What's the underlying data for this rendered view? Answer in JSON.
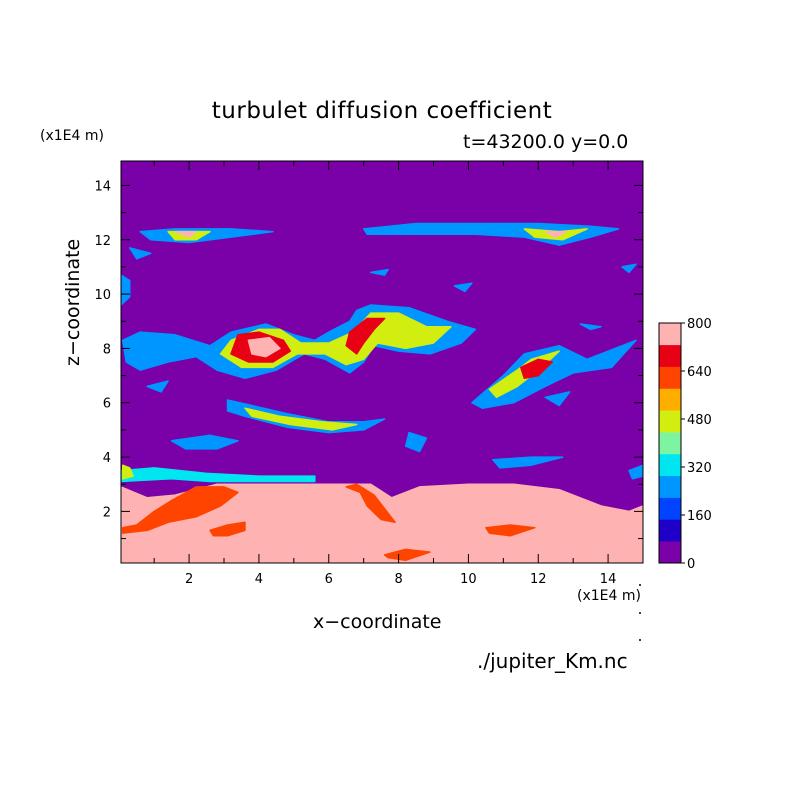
{
  "chart_data": {
    "type": "heatmap",
    "title": "turbulet diffusion coefficient",
    "subtitle": "t=43200.0 y=0.0",
    "xlabel": "x−coordinate",
    "ylabel": "z−coordinate",
    "x_unit": "(x1E4 m)",
    "y_unit": "(x1E4 m)",
    "xlim": [
      0.05,
      15.0
    ],
    "ylim": [
      0.1,
      14.9
    ],
    "x_ticks": [
      "2",
      "4",
      "6",
      "8",
      "10",
      "12",
      "14"
    ],
    "y_ticks": [
      "2",
      "4",
      "6",
      "8",
      "10",
      "12",
      "14"
    ],
    "colorbar": {
      "min": 0,
      "max": 800,
      "tick_labels": [
        "0",
        "160",
        "320",
        "480",
        "640",
        "800"
      ],
      "levels": [
        0,
        80,
        160,
        240,
        320,
        400,
        480,
        560,
        640,
        720,
        800
      ],
      "colors": [
        "#7a00a8",
        "#1f00c8",
        "#0044ff",
        "#0096ff",
        "#00e6f0",
        "#7df5a0",
        "#d2ee10",
        "#ffae00",
        "#ff4400",
        "#e80014",
        "#ffb2b2"
      ]
    },
    "features": [
      {
        "level": 10,
        "points": [
          [
            0.05,
            0.1
          ],
          [
            15.0,
            0.1
          ],
          [
            15.0,
            2.2
          ],
          [
            14.6,
            2.0
          ],
          [
            13.8,
            2.2
          ],
          [
            12.6,
            2.8
          ],
          [
            11.3,
            3.0
          ],
          [
            10.0,
            3.0
          ],
          [
            8.6,
            2.9
          ],
          [
            7.8,
            2.5
          ],
          [
            7.2,
            3.0
          ],
          [
            5.6,
            3.0
          ],
          [
            4.0,
            3.0
          ],
          [
            2.8,
            3.0
          ],
          [
            1.6,
            2.6
          ],
          [
            0.8,
            2.5
          ],
          [
            0.05,
            2.9
          ]
        ]
      },
      {
        "level": 8,
        "points": [
          [
            0.1,
            1.4
          ],
          [
            0.5,
            1.5
          ],
          [
            1.0,
            2.0
          ],
          [
            1.5,
            2.4
          ],
          [
            2.2,
            2.9
          ],
          [
            3.0,
            2.9
          ],
          [
            3.4,
            2.7
          ],
          [
            2.9,
            2.2
          ],
          [
            2.2,
            1.8
          ],
          [
            1.4,
            1.6
          ],
          [
            0.8,
            1.3
          ],
          [
            0.1,
            1.2
          ]
        ]
      },
      {
        "level": 8,
        "points": [
          [
            6.5,
            2.9
          ],
          [
            6.9,
            2.7
          ],
          [
            7.1,
            2.2
          ],
          [
            7.5,
            1.7
          ],
          [
            7.9,
            1.6
          ],
          [
            7.6,
            2.1
          ],
          [
            7.3,
            2.6
          ],
          [
            6.8,
            3.0
          ]
        ]
      },
      {
        "level": 8,
        "points": [
          [
            2.6,
            1.3
          ],
          [
            3.1,
            1.5
          ],
          [
            3.6,
            1.6
          ],
          [
            3.6,
            1.3
          ],
          [
            3.1,
            1.1
          ],
          [
            2.7,
            1.1
          ]
        ]
      },
      {
        "level": 8,
        "points": [
          [
            10.5,
            1.4
          ],
          [
            11.2,
            1.5
          ],
          [
            11.9,
            1.4
          ],
          [
            11.2,
            1.1
          ],
          [
            10.6,
            1.2
          ]
        ]
      },
      {
        "level": 8,
        "points": [
          [
            7.6,
            0.4
          ],
          [
            8.2,
            0.6
          ],
          [
            8.9,
            0.5
          ],
          [
            8.2,
            0.2
          ],
          [
            7.7,
            0.3
          ]
        ]
      },
      {
        "level": 4,
        "points": [
          [
            0.05,
            3.5
          ],
          [
            1.0,
            3.6
          ],
          [
            2.5,
            3.4
          ],
          [
            4.0,
            3.3
          ],
          [
            5.6,
            3.3
          ],
          [
            5.6,
            3.1
          ],
          [
            4.0,
            3.1
          ],
          [
            2.6,
            3.1
          ],
          [
            1.5,
            3.2
          ],
          [
            0.05,
            3.1
          ]
        ]
      },
      {
        "level": 3,
        "points": [
          [
            0.1,
            8.3
          ],
          [
            0.6,
            8.6
          ],
          [
            1.6,
            8.5
          ],
          [
            2.6,
            8.1
          ],
          [
            3.2,
            8.6
          ],
          [
            4.2,
            8.9
          ],
          [
            5.0,
            8.5
          ],
          [
            5.6,
            8.3
          ],
          [
            6.0,
            8.6
          ],
          [
            6.6,
            9.0
          ],
          [
            6.8,
            9.4
          ],
          [
            7.2,
            9.6
          ],
          [
            8.3,
            9.5
          ],
          [
            9.4,
            9.0
          ],
          [
            10.2,
            8.7
          ],
          [
            9.8,
            8.2
          ],
          [
            8.9,
            7.8
          ],
          [
            8.0,
            7.9
          ],
          [
            7.3,
            8.1
          ],
          [
            7.0,
            7.5
          ],
          [
            6.6,
            7.1
          ],
          [
            5.9,
            7.6
          ],
          [
            5.3,
            7.8
          ],
          [
            4.5,
            7.2
          ],
          [
            3.6,
            6.9
          ],
          [
            2.8,
            7.2
          ],
          [
            2.2,
            7.7
          ],
          [
            1.4,
            7.5
          ],
          [
            0.6,
            7.2
          ],
          [
            0.2,
            7.5
          ]
        ]
      },
      {
        "level": 3,
        "points": [
          [
            10.1,
            6.0
          ],
          [
            11.0,
            7.0
          ],
          [
            11.6,
            7.8
          ],
          [
            12.6,
            8.1
          ],
          [
            13.4,
            7.6
          ],
          [
            14.2,
            8.0
          ],
          [
            14.8,
            8.3
          ],
          [
            14.1,
            7.3
          ],
          [
            13.0,
            7.1
          ],
          [
            12.2,
            6.6
          ],
          [
            11.3,
            6.0
          ],
          [
            10.4,
            5.8
          ]
        ]
      },
      {
        "level": 3,
        "points": [
          [
            3.1,
            6.1
          ],
          [
            3.8,
            5.9
          ],
          [
            4.8,
            5.6
          ],
          [
            6.0,
            5.3
          ],
          [
            7.0,
            5.3
          ],
          [
            7.6,
            5.4
          ],
          [
            7.0,
            5.0
          ],
          [
            6.0,
            4.9
          ],
          [
            4.8,
            5.1
          ],
          [
            3.6,
            5.5
          ],
          [
            3.1,
            5.7
          ]
        ]
      },
      {
        "level": 3,
        "points": [
          [
            0.6,
            12.3
          ],
          [
            1.6,
            12.4
          ],
          [
            3.2,
            12.4
          ],
          [
            4.4,
            12.3
          ],
          [
            3.2,
            12.1
          ],
          [
            2.0,
            11.9
          ],
          [
            0.9,
            12.0
          ]
        ]
      },
      {
        "level": 3,
        "points": [
          [
            7.0,
            12.4
          ],
          [
            8.5,
            12.6
          ],
          [
            10.2,
            12.6
          ],
          [
            12.0,
            12.6
          ],
          [
            13.5,
            12.5
          ],
          [
            14.3,
            12.4
          ],
          [
            13.5,
            12.1
          ],
          [
            12.6,
            11.8
          ],
          [
            11.6,
            12.1
          ],
          [
            10.2,
            12.2
          ],
          [
            8.5,
            12.2
          ],
          [
            7.1,
            12.2
          ]
        ]
      },
      {
        "level": 3,
        "points": [
          [
            1.5,
            4.6
          ],
          [
            2.6,
            4.8
          ],
          [
            3.4,
            4.6
          ],
          [
            2.8,
            4.3
          ],
          [
            1.9,
            4.3
          ]
        ]
      },
      {
        "level": 3,
        "points": [
          [
            8.3,
            4.9
          ],
          [
            8.8,
            4.7
          ],
          [
            8.6,
            4.2
          ],
          [
            8.2,
            4.4
          ]
        ]
      },
      {
        "level": 3,
        "points": [
          [
            10.7,
            3.9
          ],
          [
            11.8,
            4.0
          ],
          [
            12.7,
            4.0
          ],
          [
            11.8,
            3.7
          ],
          [
            10.9,
            3.6
          ]
        ]
      },
      {
        "level": 6,
        "points": [
          [
            0.1,
            3.7
          ],
          [
            0.3,
            3.6
          ],
          [
            0.4,
            3.3
          ],
          [
            0.1,
            3.2
          ]
        ]
      },
      {
        "level": 3,
        "points": [
          [
            14.6,
            3.5
          ],
          [
            15.0,
            3.7
          ],
          [
            15.0,
            3.3
          ],
          [
            14.7,
            3.2
          ]
        ]
      },
      {
        "level": 3,
        "points": [
          [
            0.05,
            10.7
          ],
          [
            0.3,
            10.5
          ],
          [
            0.3,
            9.9
          ],
          [
            0.05,
            9.6
          ]
        ]
      },
      {
        "level": 3,
        "points": [
          [
            0.3,
            11.7
          ],
          [
            0.9,
            11.5
          ],
          [
            0.5,
            11.3
          ]
        ]
      },
      {
        "level": 3,
        "points": [
          [
            7.2,
            10.8
          ],
          [
            7.7,
            10.9
          ],
          [
            7.6,
            10.7
          ]
        ]
      },
      {
        "level": 3,
        "points": [
          [
            9.6,
            10.3
          ],
          [
            10.1,
            10.4
          ],
          [
            9.9,
            10.1
          ]
        ]
      },
      {
        "level": 3,
        "points": [
          [
            14.4,
            11.0
          ],
          [
            14.8,
            11.1
          ],
          [
            14.6,
            10.8
          ]
        ]
      },
      {
        "level": 3,
        "points": [
          [
            0.8,
            6.6
          ],
          [
            1.4,
            6.8
          ],
          [
            1.2,
            6.4
          ]
        ]
      },
      {
        "level": 3,
        "points": [
          [
            12.2,
            6.2
          ],
          [
            12.9,
            6.4
          ],
          [
            12.6,
            5.9
          ]
        ]
      },
      {
        "level": 3,
        "points": [
          [
            13.2,
            8.9
          ],
          [
            13.8,
            8.8
          ],
          [
            13.5,
            8.7
          ]
        ]
      },
      {
        "level": 6,
        "points": [
          [
            4.0,
            8.7
          ],
          [
            4.6,
            8.7
          ],
          [
            5.2,
            8.2
          ],
          [
            6.0,
            8.2
          ],
          [
            6.7,
            8.6
          ],
          [
            7.2,
            9.3
          ],
          [
            8.0,
            9.3
          ],
          [
            8.8,
            8.8
          ],
          [
            9.5,
            8.8
          ],
          [
            9.0,
            8.2
          ],
          [
            8.2,
            8.0
          ],
          [
            7.4,
            8.2
          ],
          [
            7.0,
            7.6
          ],
          [
            6.5,
            7.4
          ],
          [
            5.9,
            7.8
          ],
          [
            5.1,
            7.8
          ],
          [
            4.4,
            7.3
          ],
          [
            3.5,
            7.3
          ],
          [
            2.9,
            7.8
          ],
          [
            3.2,
            8.3
          ]
        ]
      },
      {
        "level": 6,
        "points": [
          [
            10.6,
            6.5
          ],
          [
            11.4,
            7.2
          ],
          [
            11.8,
            7.6
          ],
          [
            12.6,
            7.9
          ],
          [
            12.1,
            7.3
          ],
          [
            11.4,
            6.6
          ],
          [
            10.8,
            6.2
          ]
        ]
      },
      {
        "level": 6,
        "points": [
          [
            3.6,
            5.8
          ],
          [
            4.6,
            5.5
          ],
          [
            5.8,
            5.3
          ],
          [
            6.8,
            5.2
          ],
          [
            6.1,
            5.0
          ],
          [
            4.9,
            5.2
          ],
          [
            3.8,
            5.5
          ]
        ]
      },
      {
        "level": 6,
        "points": [
          [
            1.4,
            12.3
          ],
          [
            2.6,
            12.3
          ],
          [
            2.2,
            12.0
          ],
          [
            1.6,
            12.0
          ]
        ]
      },
      {
        "level": 6,
        "points": [
          [
            11.6,
            12.4
          ],
          [
            12.6,
            12.3
          ],
          [
            13.4,
            12.4
          ],
          [
            12.7,
            12.0
          ],
          [
            11.9,
            12.1
          ]
        ]
      },
      {
        "level": 9,
        "points": [
          [
            3.4,
            8.5
          ],
          [
            4.0,
            8.6
          ],
          [
            4.7,
            8.3
          ],
          [
            4.9,
            7.9
          ],
          [
            4.4,
            7.5
          ],
          [
            3.7,
            7.5
          ],
          [
            3.2,
            7.8
          ]
        ]
      },
      {
        "level": 9,
        "points": [
          [
            6.6,
            8.6
          ],
          [
            7.1,
            9.1
          ],
          [
            7.6,
            9.1
          ],
          [
            7.3,
            8.7
          ],
          [
            7.0,
            8.2
          ],
          [
            6.8,
            7.8
          ],
          [
            6.5,
            8.1
          ]
        ]
      },
      {
        "level": 9,
        "points": [
          [
            11.5,
            7.3
          ],
          [
            12.0,
            7.6
          ],
          [
            12.4,
            7.5
          ],
          [
            12.0,
            7.0
          ],
          [
            11.6,
            6.9
          ]
        ]
      },
      {
        "level": 10,
        "points": [
          [
            3.7,
            8.3
          ],
          [
            4.3,
            8.4
          ],
          [
            4.6,
            8.0
          ],
          [
            4.2,
            7.7
          ],
          [
            3.8,
            7.8
          ]
        ]
      },
      {
        "level": 10,
        "points": [
          [
            1.6,
            12.3
          ],
          [
            2.2,
            12.3
          ],
          [
            2.0,
            12.1
          ]
        ]
      },
      {
        "level": 10,
        "points": [
          [
            12.2,
            12.3
          ],
          [
            12.8,
            12.3
          ],
          [
            12.5,
            12.1
          ]
        ]
      }
    ]
  }
}
